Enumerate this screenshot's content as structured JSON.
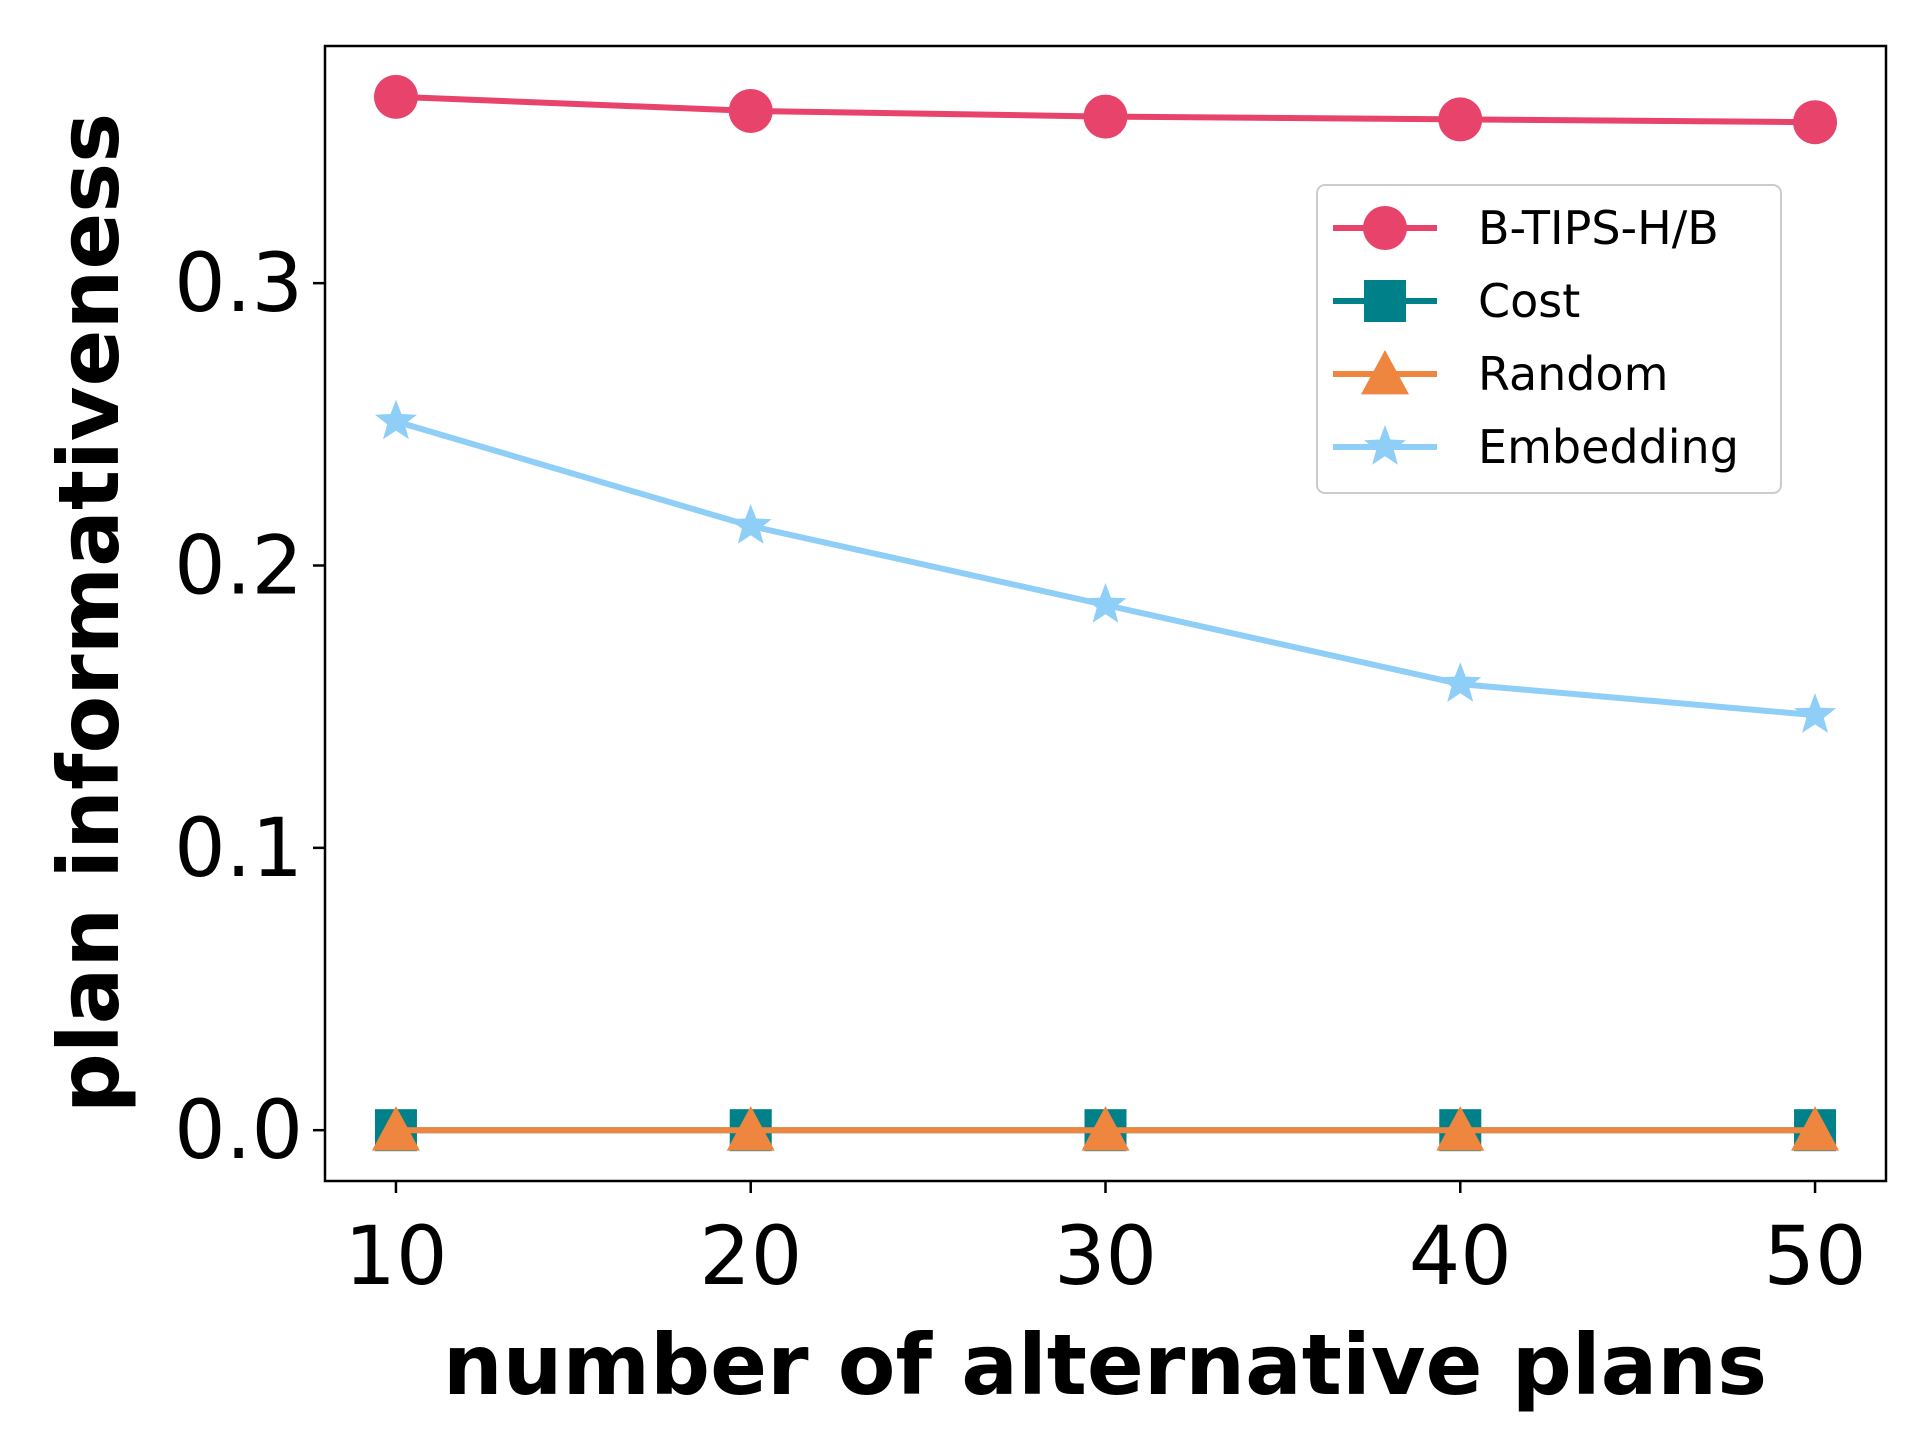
{
  "chart_data": {
    "type": "line",
    "title": "",
    "xlabel": "number of alternative plans",
    "ylabel": "plan informativeness",
    "x": [
      10,
      20,
      30,
      40,
      50
    ],
    "xticks": [
      "10",
      "20",
      "30",
      "40",
      "50"
    ],
    "yticks": [
      "0.0",
      "0.1",
      "0.2",
      "0.3"
    ],
    "xlim": [
      8,
      52
    ],
    "ylim": [
      -0.018,
      0.384
    ],
    "grid": false,
    "legend_position": "upper right",
    "series": [
      {
        "name": "B-TIPS-H/B",
        "values": [
          0.366,
          0.361,
          0.359,
          0.358,
          0.357
        ],
        "color": "#e8436a",
        "marker": "circle"
      },
      {
        "name": "Cost",
        "values": [
          0.0,
          0.0,
          0.0,
          0.0,
          0.0
        ],
        "color": "#00818a",
        "marker": "square"
      },
      {
        "name": "Random",
        "values": [
          0.0,
          0.0,
          0.0,
          0.0,
          0.0
        ],
        "color": "#ee8640",
        "marker": "triangle"
      },
      {
        "name": "Embedding",
        "values": [
          0.251,
          0.214,
          0.186,
          0.158,
          0.147
        ],
        "color": "#8fcef7",
        "marker": "star"
      }
    ]
  }
}
